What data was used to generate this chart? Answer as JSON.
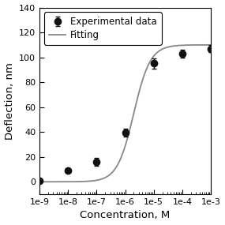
{
  "title": "",
  "xlabel": "Concentration, M",
  "ylabel": "Deflection, nm",
  "ylim": [
    -10,
    140
  ],
  "yticks": [
    0,
    20,
    40,
    60,
    80,
    100,
    120,
    140
  ],
  "exp_x": [
    1e-09,
    1e-08,
    1e-07,
    1e-06,
    1e-05,
    0.0001,
    0.001
  ],
  "exp_y": [
    1.0,
    9.0,
    16.0,
    39.5,
    95.0,
    103.0,
    107.0
  ],
  "exp_yerr": [
    0.8,
    0.8,
    3.0,
    3.0,
    4.0,
    3.0,
    3.0
  ],
  "Bmax": 110.0,
  "Kd": 2e-06,
  "n": 1.5,
  "fit_color": "#888888",
  "marker_color": "#111111",
  "background_color": "#ffffff",
  "legend_labels": [
    "Experimental data",
    "Fitting"
  ],
  "marker_size": 6,
  "line_width": 1.3,
  "font_size": 8.5,
  "label_font_size": 9.5,
  "tick_label_size": 8
}
